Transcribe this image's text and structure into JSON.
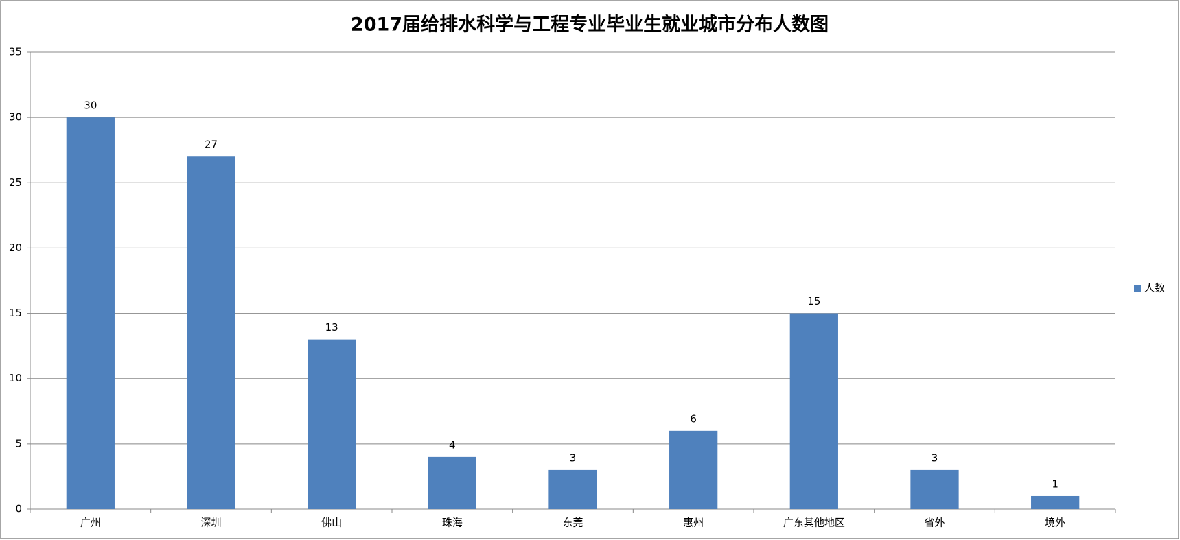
{
  "chart_data": {
    "type": "bar",
    "title": "2017届给排水科学与工程专业毕业生就业城市分布人数图",
    "categories": [
      "广州",
      "深圳",
      "佛山",
      "珠海",
      "东莞",
      "惠州",
      "广东其他地区",
      "省外",
      "境外"
    ],
    "series": [
      {
        "name": "人数",
        "color": "#4f81bd",
        "values": [
          30,
          27,
          13,
          4,
          3,
          6,
          15,
          3,
          1
        ]
      }
    ],
    "ylim": [
      0,
      35
    ],
    "yticks": [
      0,
      5,
      10,
      15,
      20,
      25,
      30,
      35
    ],
    "grid": true,
    "legend": "right"
  }
}
